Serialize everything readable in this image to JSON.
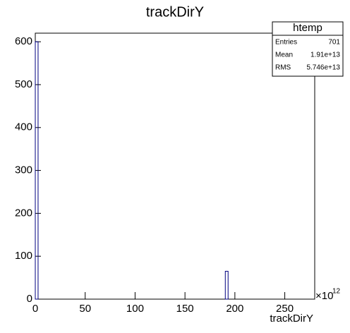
{
  "chart_data": {
    "type": "histogram",
    "title": "trackDirY",
    "x_label": "trackDirY",
    "x_multiplier": {
      "base": "×10",
      "exponent": "12"
    },
    "bins": [
      0,
      2.8,
      190.4,
      193.2,
      280
    ],
    "counts": [
      600,
      0,
      65,
      0
    ],
    "color": "#000080",
    "xlim": [
      0,
      280
    ],
    "xticks": [
      0,
      50,
      100,
      150,
      200,
      250
    ],
    "ylim": [
      0,
      620
    ],
    "yticks": [
      0,
      100,
      200,
      300,
      400,
      500,
      600
    ],
    "stats": {
      "title": "htemp",
      "rows": [
        [
          "Entries",
          "701"
        ],
        [
          "Mean",
          "1.91e+13"
        ],
        [
          "RMS",
          "5.746e+13"
        ]
      ]
    }
  }
}
